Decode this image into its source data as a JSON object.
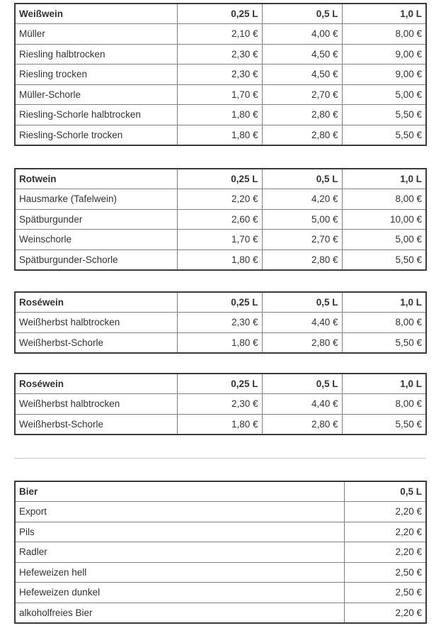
{
  "tables": [
    {
      "header": [
        "Weißwein",
        "0,25 L",
        "0,5 L",
        "1,0 L"
      ],
      "rows": [
        [
          "Müller",
          "2,10 €",
          "4,00 €",
          "8,00 €"
        ],
        [
          "Riesling halbtrocken",
          "2,30 €",
          "4,50 €",
          "9,00 €"
        ],
        [
          "Riesling trocken",
          "2,30 €",
          "4,50 €",
          "9,00 €"
        ],
        [
          "Müller-Schorle",
          "1,70 €",
          "2,70 €",
          "5,00 €"
        ],
        [
          "Riesling-Schorle halbtrocken",
          "1,80 €",
          "2,80 €",
          "5,50 €"
        ],
        [
          "Riesling-Schorle trocken",
          "1,80 €",
          "2,80 €",
          "5,50 €"
        ]
      ]
    },
    {
      "header": [
        "Rotwein",
        "0,25 L",
        "0,5 L",
        "1,0 L"
      ],
      "rows": [
        [
          "Hausmarke (Tafelwein)",
          "2,20 €",
          "4,20 €",
          "8,00 €"
        ],
        [
          "Spätburgunder",
          "2,60 €",
          "5,00 €",
          "10,00 €"
        ],
        [
          "Weinschorle",
          "1,70 €",
          "2,70 €",
          "5,00 €"
        ],
        [
          "Spätburgunder-Schorle",
          "1,80 €",
          "2,80 €",
          "5,50 €"
        ]
      ]
    },
    {
      "header": [
        "Roséwein",
        "0,25 L",
        "0,5 L",
        "1,0 L"
      ],
      "rows": [
        [
          "Weißherbst halbtrocken",
          "2,30 €",
          "4,40 €",
          "8,00 €"
        ],
        [
          "Weißherbst-Schorle",
          "1,80 €",
          "2,80 €",
          "5,50 €"
        ]
      ]
    },
    {
      "header": [
        "Roséwein",
        "0,25 L",
        "0,5 L",
        "1,0 L"
      ],
      "rows": [
        [
          "Weißherbst halbtrocken",
          "2,30 €",
          "4,40 €",
          "8,00 €"
        ],
        [
          "Weißherbst-Schorle",
          "1,80 €",
          "2,80 €",
          "5,50 €"
        ]
      ]
    },
    {
      "header": [
        "Bier",
        "0,5 L"
      ],
      "rows": [
        [
          "Export",
          "2,20 €"
        ],
        [
          "Pils",
          "2,20 €"
        ],
        [
          "Radler",
          "2,20 €"
        ],
        [
          "Hefeweizen hell",
          "2,50 €"
        ],
        [
          "Hefeweizen dunkel",
          "2,50 €"
        ],
        [
          "alkoholfreies Bier",
          "2,20 €"
        ]
      ]
    }
  ]
}
